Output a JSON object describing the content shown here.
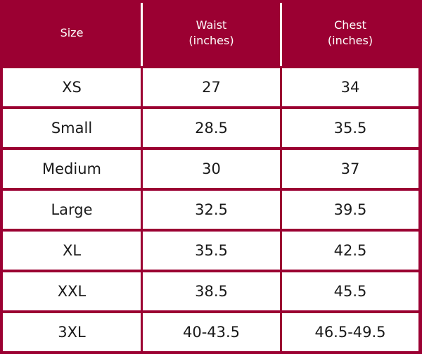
{
  "table": {
    "headers": [
      {
        "line1": "Size",
        "line2": ""
      },
      {
        "line1": "Waist",
        "line2": "(inches)"
      },
      {
        "line1": "Chest",
        "line2": "(inches)"
      }
    ],
    "rows": [
      {
        "size": "XS",
        "waist": "27",
        "chest": "34"
      },
      {
        "size": "Small",
        "waist": "28.5",
        "chest": "35.5"
      },
      {
        "size": "Medium",
        "waist": "30",
        "chest": "37"
      },
      {
        "size": "Large",
        "waist": "32.5",
        "chest": "39.5"
      },
      {
        "size": "XL",
        "waist": "35.5",
        "chest": "42.5"
      },
      {
        "size": "XXL",
        "waist": "38.5",
        "chest": "45.5"
      },
      {
        "size": "3XL",
        "waist": "40-43.5",
        "chest": "46.5-49.5"
      }
    ]
  },
  "colors": {
    "header_background": "#9b0032",
    "grid_lines": "#9b0032",
    "header_text": "#ffffff",
    "cell_background": "#ffffff",
    "cell_text": "#1a1a1a"
  }
}
